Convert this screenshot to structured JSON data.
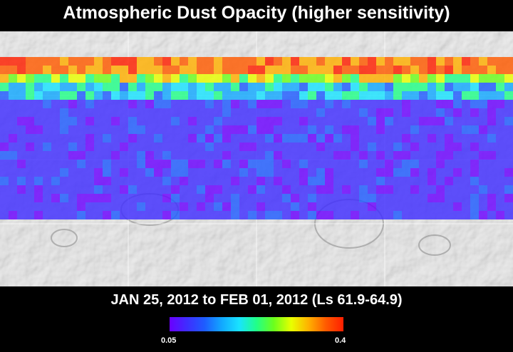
{
  "title": "Atmospheric Dust Opacity (higher sensitivity)",
  "date_range": "JAN 25, 2012 to FEB 01, 2012 (Ls 61.9-64.9)",
  "colorbar": {
    "min_label": "0.05",
    "max_label": "0.4",
    "colors": [
      "#6a00ff",
      "#3f2dff",
      "#1e5cff",
      "#12a8ff",
      "#19e3ff",
      "#21ff88",
      "#6cff1c",
      "#e9ff00",
      "#ffb000",
      "#ff5a00",
      "#ff1e00"
    ]
  },
  "map": {
    "base": "shaded-relief-mars",
    "overlay_band": "dust-opacity-grid"
  }
}
